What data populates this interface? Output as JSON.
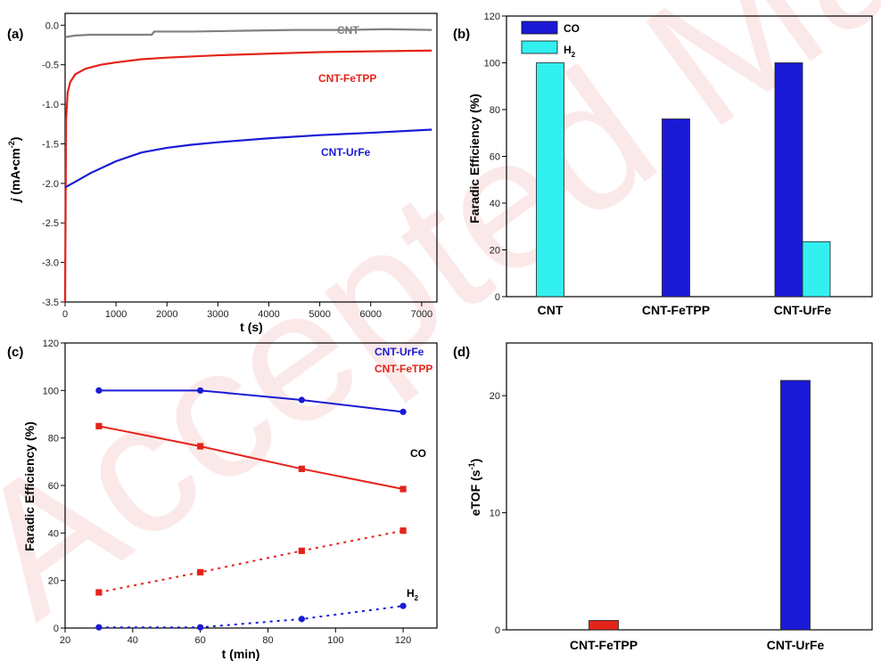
{
  "watermark": "Accepted Manuscript",
  "chart_data": [
    {
      "panel": "(a)",
      "type": "line",
      "xlabel": "t (s)",
      "ylabel_parts": [
        "j",
        " (mA•cm",
        "-2",
        ")"
      ],
      "xlim": [
        0,
        7300
      ],
      "ylim": [
        -3.5,
        0.15
      ],
      "xticks": [
        0,
        1000,
        2000,
        3000,
        4000,
        5000,
        6000,
        7000
      ],
      "yticks": [
        -3.5,
        -3.0,
        -2.5,
        -2.0,
        -1.5,
        -1.0,
        -0.5,
        0.0
      ],
      "ytick_labels": [
        "-3.5",
        "-3.0",
        "-2.5",
        "-2.0",
        "-1.5",
        "-1.0",
        "-0.5",
        "0.0"
      ],
      "series": [
        {
          "name": "CNT",
          "color": "#808080",
          "x": [
            0,
            200,
            500,
            1000,
            1700,
            1750,
            2500,
            3500,
            4500,
            5500,
            6300,
            7200
          ],
          "y": [
            -0.15,
            -0.13,
            -0.12,
            -0.12,
            -0.12,
            -0.08,
            -0.08,
            -0.07,
            -0.06,
            -0.06,
            -0.05,
            -0.06
          ]
        },
        {
          "name": "CNT-FeTPP",
          "color": "#e3241b",
          "x": [
            0,
            20,
            50,
            100,
            200,
            400,
            700,
            1000,
            1500,
            2000,
            3000,
            4000,
            5000,
            6000,
            7200
          ],
          "y": [
            -3.5,
            -1.2,
            -0.85,
            -0.72,
            -0.62,
            -0.55,
            -0.5,
            -0.47,
            -0.43,
            -0.41,
            -0.38,
            -0.36,
            -0.34,
            -0.33,
            -0.32
          ]
        },
        {
          "name": "CNT-UrFe",
          "color": "#1a1ad6",
          "x": [
            0,
            200,
            500,
            1000,
            1500,
            2000,
            2500,
            3000,
            4000,
            5000,
            6000,
            7200
          ],
          "y": [
            -2.05,
            -1.98,
            -1.87,
            -1.72,
            -1.61,
            -1.55,
            -1.51,
            -1.48,
            -1.43,
            -1.39,
            -1.36,
            -1.32
          ]
        }
      ]
    },
    {
      "panel": "(b)",
      "type": "bar",
      "ylabel": "Faradic Efficiency (%)",
      "categories": [
        "CNT",
        "CNT-FeTPP",
        "CNT-UrFe"
      ],
      "ylim": [
        0,
        120
      ],
      "yticks": [
        0,
        20,
        40,
        60,
        80,
        100,
        120
      ],
      "series": [
        {
          "name": "CO",
          "color": "#1a1ad6",
          "values": [
            0,
            76,
            100
          ]
        },
        {
          "name": "H2",
          "legend_parts": [
            "H",
            "2"
          ],
          "color": "#33f0f0",
          "values": [
            100,
            0,
            23.5
          ]
        }
      ]
    },
    {
      "panel": "(c)",
      "type": "line",
      "xlabel": "t (min)",
      "ylabel": "Faradic Efficiency (%)",
      "xlim": [
        20,
        130
      ],
      "ylim": [
        0,
        120
      ],
      "xticks": [
        20,
        40,
        60,
        80,
        100,
        120
      ],
      "yticks": [
        0,
        20,
        40,
        60,
        80,
        100,
        120
      ],
      "annotations": {
        "co": "CO",
        "h2_parts": [
          "H",
          "2"
        ]
      },
      "series": [
        {
          "name": "CNT-UrFe",
          "gas": "CO",
          "color": "#1a1ad6",
          "marker": "circle",
          "style": "solid",
          "x": [
            30,
            60,
            90,
            120
          ],
          "y": [
            100,
            100,
            96,
            91
          ]
        },
        {
          "name": "CNT-FeTPP",
          "gas": "CO",
          "color": "#e3241b",
          "marker": "square",
          "style": "solid",
          "x": [
            30,
            60,
            90,
            120
          ],
          "y": [
            85,
            76.5,
            67,
            58.5
          ]
        },
        {
          "name": "CNT-FeTPP",
          "gas": "H2",
          "color": "#e3241b",
          "marker": "square",
          "style": "dotted",
          "x": [
            30,
            60,
            90,
            120
          ],
          "y": [
            15,
            23.5,
            32.5,
            41
          ]
        },
        {
          "name": "CNT-UrFe",
          "gas": "H2",
          "color": "#1a1ad6",
          "marker": "circle",
          "style": "dotted",
          "x": [
            30,
            60,
            90,
            120
          ],
          "y": [
            0.3,
            0.3,
            3.8,
            9.3
          ]
        }
      ]
    },
    {
      "panel": "(d)",
      "type": "bar",
      "ylabel_parts": [
        "eTOF (s",
        "-1",
        ")"
      ],
      "categories": [
        "CNT-FeTPP",
        "CNT-UrFe"
      ],
      "ylim": [
        0,
        24.5
      ],
      "yticks": [
        0,
        10,
        20
      ],
      "values": [
        0.8,
        21.3
      ],
      "colors": [
        "#e3241b",
        "#1a1ad6"
      ]
    }
  ]
}
